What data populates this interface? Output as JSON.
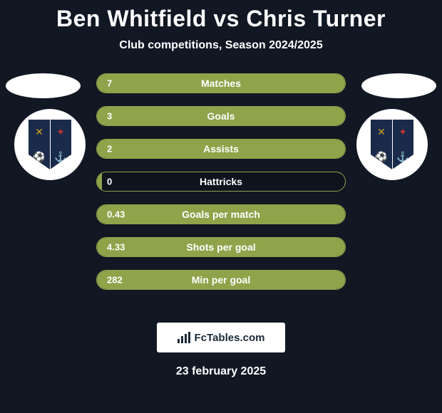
{
  "colors": {
    "background": "#111723",
    "text": "#ffffff",
    "bar_fill": "#8fa34a",
    "bar_border": "#8fa34a",
    "ellipse": "#ffffff",
    "crest_bg": "#ffffff",
    "shield": "#1a2a4a",
    "brand_box_bg": "#ffffff",
    "brand_box_text": "#1a2a3a"
  },
  "typography": {
    "title_fontsize": 32,
    "subtitle_fontsize": 16,
    "stat_label_fontsize": 14,
    "stat_value_fontsize": 13,
    "date_fontsize": 16
  },
  "header": {
    "player1": "Ben Whitfield",
    "vs": "vs",
    "player2": "Chris Turner",
    "subtitle": "Club competitions, Season 2024/2025"
  },
  "crests": {
    "left_team": "Barrow AFC",
    "right_team": "Barrow AFC"
  },
  "stats": [
    {
      "label": "Matches",
      "value_left": "7",
      "fill_pct": 100
    },
    {
      "label": "Goals",
      "value_left": "3",
      "fill_pct": 100
    },
    {
      "label": "Assists",
      "value_left": "2",
      "fill_pct": 100
    },
    {
      "label": "Hattricks",
      "value_left": "0",
      "fill_pct": 2
    },
    {
      "label": "Goals per match",
      "value_left": "0.43",
      "fill_pct": 100
    },
    {
      "label": "Shots per goal",
      "value_left": "4.33",
      "fill_pct": 100
    },
    {
      "label": "Min per goal",
      "value_left": "282",
      "fill_pct": 100
    }
  ],
  "footer": {
    "brand": "FcTables.com",
    "date": "23 february 2025"
  }
}
